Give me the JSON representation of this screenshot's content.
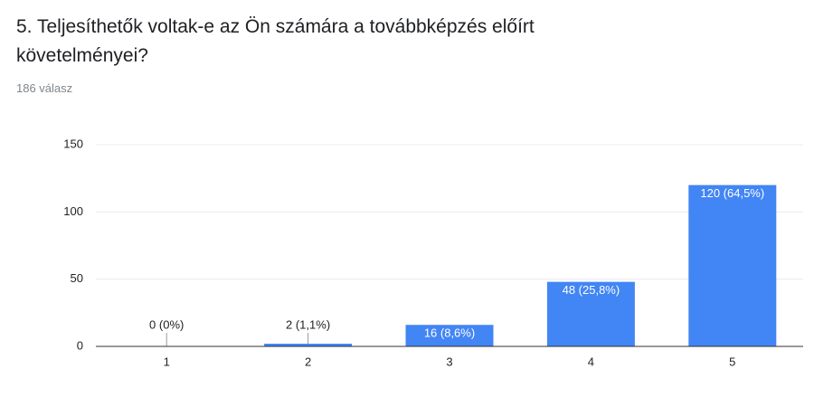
{
  "chart_data": {
    "type": "bar",
    "title": "5. Teljesíthetők voltak-e az Ön számára a továbbképzés előírt követelményei?",
    "subtitle": "186 válasz",
    "categories": [
      "1",
      "2",
      "3",
      "4",
      "5"
    ],
    "values": [
      0,
      2,
      16,
      48,
      120
    ],
    "value_labels": [
      "0 (0%)",
      "2 (1,1%)",
      "16 (8,6%)",
      "48 (25,8%)",
      "120 (64,5%)"
    ],
    "color": "#4285f4",
    "ylim": [
      0,
      150
    ],
    "yticks": [
      0,
      50,
      100,
      150
    ],
    "grid": true
  }
}
